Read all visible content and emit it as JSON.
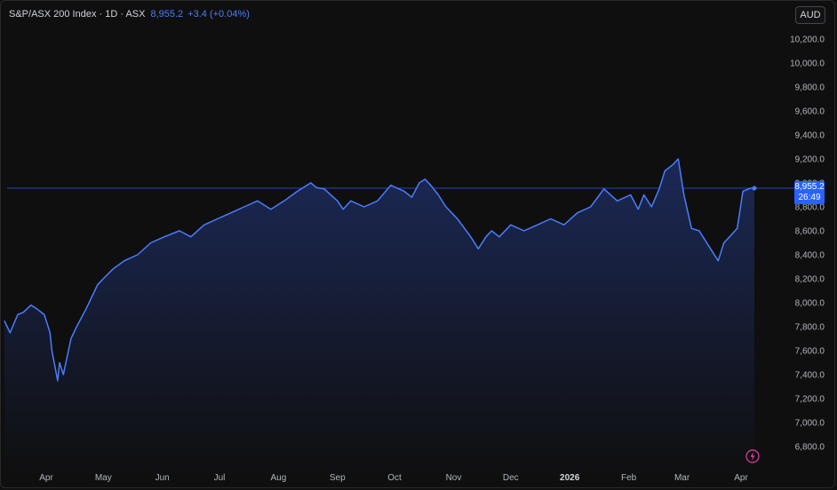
{
  "legend": {
    "symbol": "S&P/ASX 200 Index · 1D · ASX",
    "last": "8,955.2",
    "change": "+3.4 (+0.04%)"
  },
  "currency": "AUD",
  "price_tag": {
    "price": "8,955.2",
    "countdown": "26:49"
  },
  "colors": {
    "line": "#4a7dff",
    "price_line": "#2962ff",
    "fill_top": "#1c2a5a",
    "tag": "#2962ff"
  },
  "icons": {
    "flash": "flash-icon"
  },
  "chart_data": {
    "type": "area",
    "title": "",
    "xlabel": "",
    "ylabel": "",
    "ylim": [
      6700,
      10250
    ],
    "y_ticks": [
      "10,200.0",
      "10,000.0",
      "9,800.0",
      "9,600.0",
      "9,400.0",
      "9,200.0",
      "9,000.0",
      "8,800.0",
      "8,600.0",
      "8,400.0",
      "8,200.0",
      "8,000.0",
      "7,800.0",
      "7,600.0",
      "7,400.0",
      "7,200.0",
      "7,000.0",
      "6,800.0"
    ],
    "y_tick_values": [
      10200,
      10000,
      9800,
      9600,
      9400,
      9200,
      9000,
      8800,
      8600,
      8400,
      8200,
      8000,
      7800,
      7600,
      7400,
      7200,
      7000,
      6800
    ],
    "x_ticks": [
      {
        "label": "Apr",
        "date": "2025-04-01",
        "bold": false
      },
      {
        "label": "May",
        "date": "2025-05-01",
        "bold": false
      },
      {
        "label": "Jun",
        "date": "2025-06-01",
        "bold": false
      },
      {
        "label": "Jul",
        "date": "2025-07-01",
        "bold": false
      },
      {
        "label": "Aug",
        "date": "2025-08-01",
        "bold": false
      },
      {
        "label": "Sep",
        "date": "2025-09-01",
        "bold": false
      },
      {
        "label": "Oct",
        "date": "2025-10-01",
        "bold": false
      },
      {
        "label": "Nov",
        "date": "2025-11-01",
        "bold": false
      },
      {
        "label": "Dec",
        "date": "2025-12-01",
        "bold": false
      },
      {
        "label": "2026",
        "date": "2026-01-01",
        "bold": true
      },
      {
        "label": "Feb",
        "date": "2026-02-01",
        "bold": false
      },
      {
        "label": "Mar",
        "date": "2026-03-01",
        "bold": false
      },
      {
        "label": "Apr",
        "date": "2026-04-01",
        "bold": false
      }
    ],
    "last_value": 8955.2,
    "series": [
      {
        "x": [
          "2025-03-10",
          "2025-03-13",
          "2025-03-17",
          "2025-03-20",
          "2025-03-24",
          "2025-03-27",
          "2025-03-31",
          "2025-04-03",
          "2025-04-04",
          "2025-04-07",
          "2025-04-08",
          "2025-04-10",
          "2025-04-14",
          "2025-04-17",
          "2025-04-22",
          "2025-04-28",
          "2025-05-01",
          "2025-05-06",
          "2025-05-12",
          "2025-05-19",
          "2025-05-26",
          "2025-06-02",
          "2025-06-10",
          "2025-06-16",
          "2025-06-23",
          "2025-06-30",
          "2025-07-07",
          "2025-07-14",
          "2025-07-21",
          "2025-07-28",
          "2025-08-04",
          "2025-08-11",
          "2025-08-18",
          "2025-08-21",
          "2025-08-25",
          "2025-09-01",
          "2025-09-04",
          "2025-09-08",
          "2025-09-15",
          "2025-09-22",
          "2025-09-29",
          "2025-10-06",
          "2025-10-10",
          "2025-10-14",
          "2025-10-17",
          "2025-10-20",
          "2025-10-24",
          "2025-10-28",
          "2025-11-03",
          "2025-11-10",
          "2025-11-14",
          "2025-11-18",
          "2025-11-21",
          "2025-11-25",
          "2025-12-01",
          "2025-12-08",
          "2025-12-15",
          "2025-12-22",
          "2025-12-29",
          "2026-01-05",
          "2026-01-12",
          "2026-01-19",
          "2026-01-26",
          "2026-02-02",
          "2026-02-06",
          "2026-02-09",
          "2026-02-13",
          "2026-02-17",
          "2026-02-20",
          "2026-02-24",
          "2026-02-27",
          "2026-03-02",
          "2026-03-06",
          "2026-03-10",
          "2026-03-16",
          "2026-03-20",
          "2026-03-23",
          "2026-03-26",
          "2026-03-30",
          "2026-04-02",
          "2026-04-06",
          "2026-04-08"
        ],
        "values": [
          7850,
          7750,
          7900,
          7920,
          7980,
          7950,
          7900,
          7750,
          7600,
          7350,
          7500,
          7400,
          7700,
          7800,
          7950,
          8150,
          8200,
          8280,
          8350,
          8400,
          8500,
          8550,
          8600,
          8550,
          8650,
          8700,
          8750,
          8800,
          8850,
          8780,
          8850,
          8930,
          9000,
          8960,
          8950,
          8850,
          8780,
          8850,
          8800,
          8850,
          8980,
          8930,
          8880,
          9000,
          9030,
          8980,
          8900,
          8800,
          8700,
          8550,
          8450,
          8550,
          8600,
          8550,
          8650,
          8600,
          8650,
          8700,
          8650,
          8750,
          8800,
          8950,
          8850,
          8900,
          8780,
          8900,
          8800,
          8950,
          9100,
          9150,
          9200,
          8900,
          8620,
          8600,
          8450,
          8350,
          8500,
          8550,
          8620,
          8930,
          8955,
          8955.2
        ]
      }
    ]
  }
}
